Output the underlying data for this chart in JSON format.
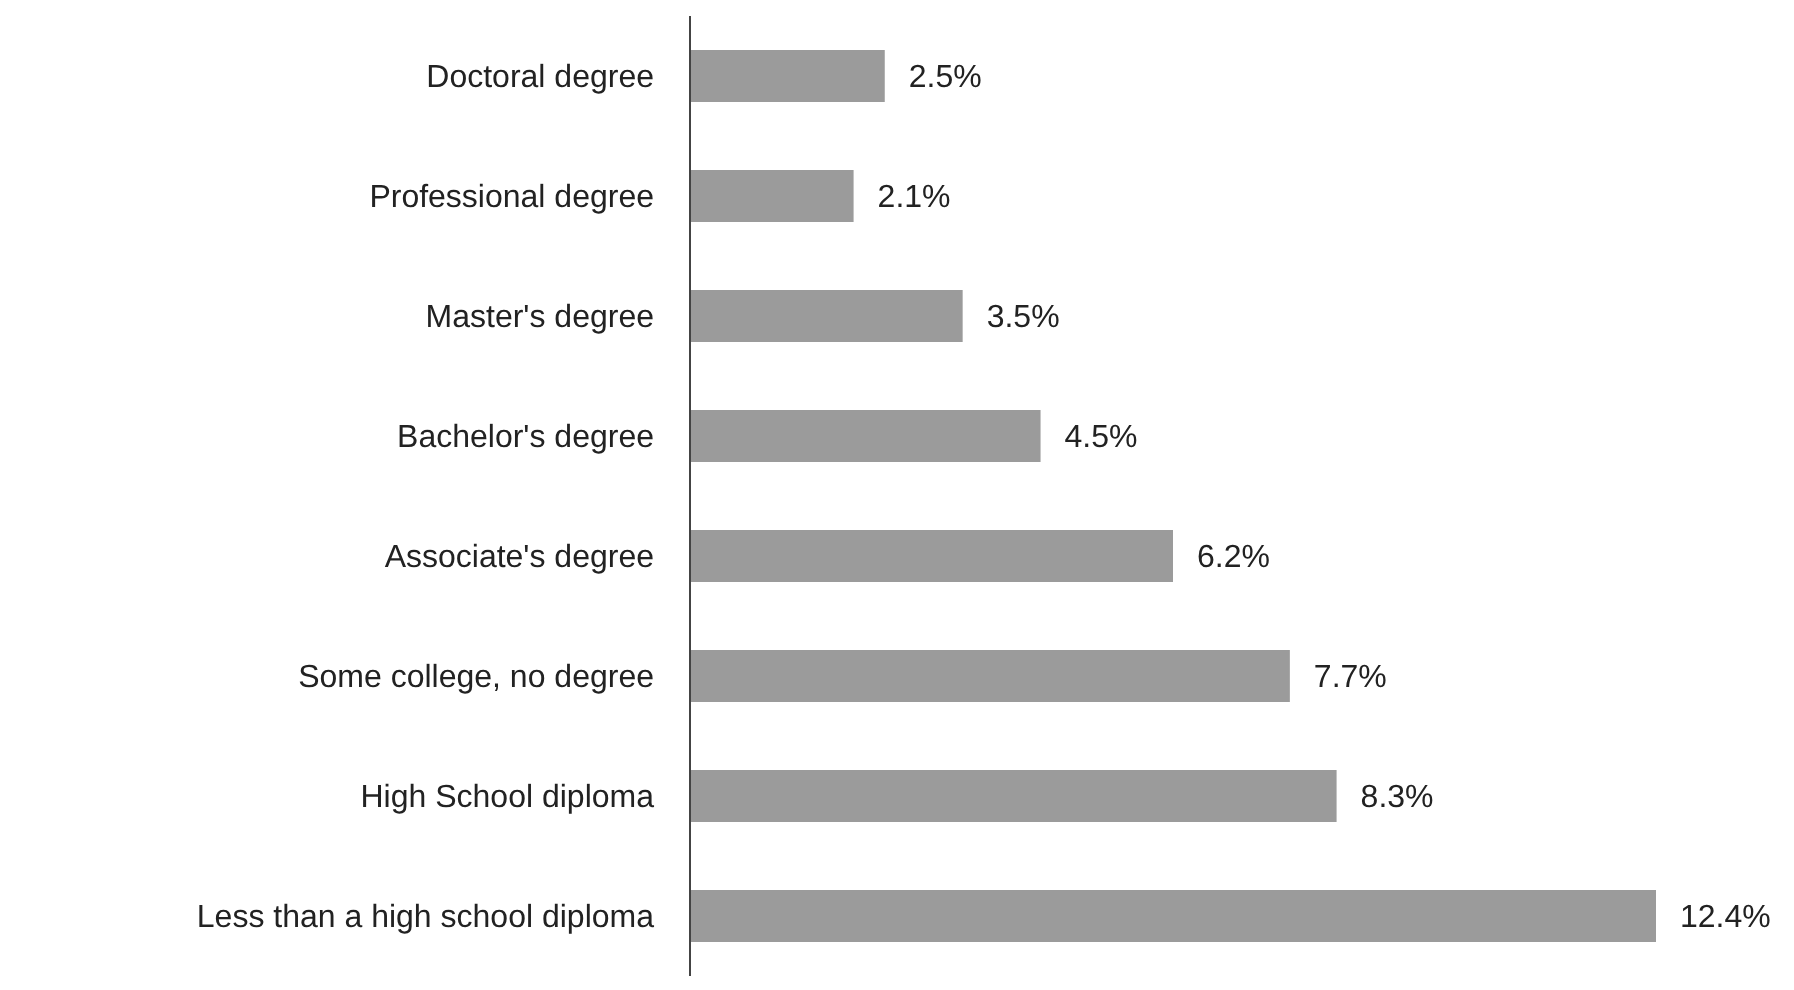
{
  "chart_data": {
    "type": "bar",
    "orientation": "horizontal",
    "categories": [
      "Doctoral degree",
      "Professional degree",
      "Master's degree",
      "Bachelor's degree",
      "Associate's degree",
      "Some college, no degree",
      "High School diploma",
      "Less than a high school diploma"
    ],
    "values": [
      2.5,
      2.1,
      3.5,
      4.5,
      6.2,
      7.7,
      8.3,
      12.4
    ],
    "value_labels": [
      "2.5%",
      "2.1%",
      "3.5%",
      "4.5%",
      "6.2%",
      "7.7%",
      "8.3%",
      "12.4%"
    ],
    "color": "#9b9b9b",
    "grid": false
  }
}
